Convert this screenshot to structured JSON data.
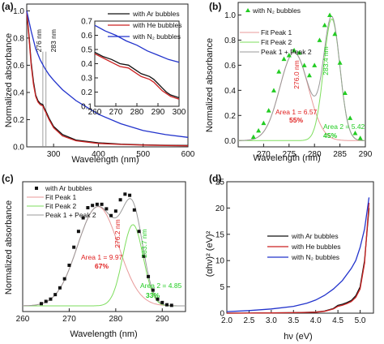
{
  "panels": [
    {
      "id": "a",
      "label": "(a)"
    },
    {
      "id": "b",
      "label": "(b)"
    },
    {
      "id": "c",
      "label": "(c)"
    },
    {
      "id": "d",
      "label": "(d)"
    }
  ],
  "colors": {
    "ar": "#111111",
    "he": "#cc2222",
    "n2": "#2233cc",
    "fit1": "#e89a9a",
    "fit2": "#7ede5e",
    "sum": "#999999",
    "marker_green": "#22cc22",
    "ann_red": "#e02020",
    "ann_green": "#22cc22"
  },
  "chart_data": [
    {
      "id": "a",
      "type": "line",
      "xlabel": "Wavelength (nm)",
      "ylabel": "Normalized absorbance",
      "xlim": [
        240,
        600
      ],
      "ylim": [
        0,
        1.05
      ],
      "xticks": [
        300,
        400,
        500,
        600
      ],
      "yticks": [
        0.0,
        0.2,
        0.4,
        0.6,
        0.8,
        1.0
      ],
      "xtick_labels": [
        "300",
        "400",
        "500",
        "600"
      ],
      "ytick_labels": [
        "0.0",
        "0.2",
        "0.4",
        "0.6",
        "0.8",
        "1.0"
      ],
      "annotations": [
        {
          "text": "276 nm",
          "x": 276
        },
        {
          "text": "283 nm",
          "x": 283
        }
      ],
      "legend": [
        "with Ar bubbles",
        "with He bubbles",
        "with N₂ bubbles"
      ],
      "series": [
        {
          "name": "with Ar bubbles",
          "color_key": "ar",
          "x": [
            240,
            245,
            250,
            255,
            260,
            265,
            270,
            276,
            280,
            283,
            290,
            300,
            320,
            350,
            400,
            450,
            500,
            550,
            600
          ],
          "y": [
            1.0,
            0.82,
            0.62,
            0.48,
            0.38,
            0.34,
            0.32,
            0.31,
            0.28,
            0.26,
            0.21,
            0.15,
            0.09,
            0.05,
            0.03,
            0.02,
            0.015,
            0.012,
            0.01
          ]
        },
        {
          "name": "with He bubbles",
          "color_key": "he",
          "x": [
            240,
            245,
            250,
            255,
            260,
            265,
            270,
            276,
            280,
            283,
            290,
            300,
            320,
            350,
            400,
            450,
            500,
            550,
            600
          ],
          "y": [
            1.0,
            0.8,
            0.6,
            0.46,
            0.37,
            0.33,
            0.31,
            0.3,
            0.27,
            0.25,
            0.2,
            0.14,
            0.08,
            0.045,
            0.025,
            0.018,
            0.013,
            0.01,
            0.008
          ]
        },
        {
          "name": "with N₂ bubbles",
          "color_key": "n2",
          "x": [
            240,
            250,
            260,
            270,
            280,
            290,
            300,
            320,
            350,
            400,
            450,
            500,
            550,
            600
          ],
          "y": [
            1.0,
            0.85,
            0.72,
            0.64,
            0.58,
            0.53,
            0.49,
            0.42,
            0.34,
            0.24,
            0.17,
            0.12,
            0.09,
            0.07
          ]
        }
      ],
      "inset": {
        "xlim": [
          260,
          300
        ],
        "ylim": [
          0.1,
          0.7
        ],
        "xticks": [
          260,
          270,
          280,
          290,
          300
        ],
        "yticks": [
          0.1,
          0.2,
          0.3,
          0.4,
          0.5,
          0.6,
          0.7
        ],
        "xtick_labels": [
          "260",
          "270",
          "280",
          "290",
          "300"
        ],
        "ytick_labels": [
          "0.1",
          "0.2",
          "0.3",
          "0.4",
          "0.5",
          "0.6",
          "0.7"
        ],
        "series": [
          {
            "name": "with Ar bubbles",
            "color_key": "ar",
            "x": [
              260,
              264,
              268,
              272,
              276,
              278,
              280,
              282,
              284,
              286,
              288,
              290,
              292,
              294,
              296,
              300
            ],
            "y": [
              0.48,
              0.45,
              0.43,
              0.4,
              0.39,
              0.37,
              0.35,
              0.33,
              0.32,
              0.31,
              0.29,
              0.26,
              0.23,
              0.2,
              0.18,
              0.16
            ]
          },
          {
            "name": "with He bubbles",
            "color_key": "he",
            "x": [
              260,
              264,
              268,
              272,
              276,
              278,
              280,
              282,
              284,
              286,
              288,
              290,
              292,
              294,
              296,
              300
            ],
            "y": [
              0.47,
              0.44,
              0.41,
              0.38,
              0.37,
              0.35,
              0.33,
              0.31,
              0.3,
              0.29,
              0.27,
              0.24,
              0.21,
              0.19,
              0.17,
              0.15
            ]
          },
          {
            "name": "with N₂ bubbles",
            "color_key": "n2",
            "x": [
              260,
              265,
              270,
              275,
              280,
              285,
              290,
              295,
              300
            ],
            "y": [
              0.67,
              0.63,
              0.6,
              0.56,
              0.53,
              0.49,
              0.46,
              0.43,
              0.41
            ]
          }
        ]
      }
    },
    {
      "id": "b",
      "type": "scatter",
      "xlabel": "Wavelength (nm)",
      "ylabel": "Normalized absorbance",
      "xlim": [
        265,
        290
      ],
      "ylim": [
        -0.05,
        1.1
      ],
      "xticks": [
        270,
        275,
        280,
        285,
        290
      ],
      "yticks": [
        0.0,
        0.2,
        0.4,
        0.6,
        0.8,
        1.0
      ],
      "xtick_labels": [
        "270",
        "275",
        "280",
        "285",
        "290"
      ],
      "ytick_labels": [
        "0.0",
        "0.2",
        "0.4",
        "0.6",
        "0.8",
        "1.0"
      ],
      "legend": [
        "with N₂ bubbles",
        "Fit Peak 1",
        "Fit Peak 2",
        "Peak 1 + Peak 2"
      ],
      "markers": {
        "x": [
          268,
          269,
          270,
          271,
          272,
          273,
          274,
          275,
          276,
          277,
          278,
          279,
          280,
          281,
          282,
          283,
          284,
          285,
          286,
          287,
          288,
          289
        ],
        "y": [
          0.03,
          0.08,
          0.14,
          0.24,
          0.4,
          0.55,
          0.65,
          0.68,
          0.72,
          0.7,
          0.6,
          0.52,
          0.6,
          0.8,
          0.92,
          1.0,
          0.85,
          0.62,
          0.38,
          0.18,
          0.06,
          0.02
        ]
      },
      "peak1": {
        "center": 276.0,
        "height": 0.7,
        "sigma": 2.8
      },
      "peak2": {
        "center": 283.4,
        "height": 0.97,
        "sigma": 1.6
      },
      "annotations": [
        {
          "text": "276.0 nm",
          "x": 276
        },
        {
          "text": "283.4 nm",
          "x": 283.4
        },
        {
          "text": "Area 1 = 6.57",
          "color_key": "ann_red"
        },
        {
          "text": "55%",
          "color_key": "ann_red"
        },
        {
          "text": "Area 2 = 5.42",
          "color_key": "ann_green"
        },
        {
          "text": "45%",
          "color_key": "ann_green"
        }
      ]
    },
    {
      "id": "c",
      "type": "scatter",
      "xlabel": "Wavelength (nm)",
      "ylabel": "Normalized absorbance",
      "xlim": [
        260,
        295
      ],
      "ylim": [
        -0.05,
        1.1
      ],
      "xticks": [
        260,
        270,
        280,
        290
      ],
      "yticks": [],
      "xtick_labels": [
        "260",
        "270",
        "280",
        "290"
      ],
      "ytick_labels": [],
      "legend": [
        "with Ar bubbles",
        "Fit Peak 1",
        "Fit Peak 2",
        "Peak 1 + Peak 2"
      ],
      "markers": {
        "x": [
          264,
          265,
          266,
          267,
          268,
          269,
          270,
          271,
          272,
          273,
          274,
          275,
          276,
          277,
          278,
          279,
          280,
          281,
          282,
          283,
          284,
          285,
          286,
          287,
          288,
          289,
          290,
          291,
          292
        ],
        "y": [
          0.02,
          0.04,
          0.06,
          0.1,
          0.16,
          0.24,
          0.36,
          0.52,
          0.66,
          0.78,
          0.87,
          0.89,
          0.9,
          0.9,
          0.86,
          0.8,
          0.84,
          0.94,
          0.99,
          0.98,
          0.85,
          0.66,
          0.44,
          0.26,
          0.14,
          0.06,
          0.03,
          0.01,
          0.005
        ]
      },
      "peak1": {
        "center": 276.2,
        "height": 0.88,
        "sigma": 4.4
      },
      "peak2": {
        "center": 283.7,
        "height": 0.72,
        "sigma": 2.2
      },
      "annotations": [
        {
          "text": "276.2 nm",
          "x": 276.2
        },
        {
          "text": "283.7 nm",
          "x": 283.7
        },
        {
          "text": "Area 1 = 9.97",
          "color_key": "ann_red"
        },
        {
          "text": "67%",
          "color_key": "ann_red"
        },
        {
          "text": "Area 2 = 4.85",
          "color_key": "ann_green"
        },
        {
          "text": "33%",
          "color_key": "ann_green"
        }
      ]
    },
    {
      "id": "d",
      "type": "line",
      "xlabel": "hν (eV)",
      "ylabel": "(αhν)² (eV)²",
      "xlim": [
        2.0,
        5.3
      ],
      "ylim": [
        0,
        25
      ],
      "xticks": [
        2.0,
        2.5,
        3.0,
        3.5,
        4.0,
        4.5,
        5.0
      ],
      "yticks": [
        0,
        5,
        10,
        15,
        20,
        25
      ],
      "xtick_labels": [
        "2.0",
        "2.5",
        "3.0",
        "3.5",
        "4.0",
        "4.5",
        "5.0"
      ],
      "ytick_labels": [
        "0",
        "5",
        "10",
        "15",
        "20",
        "25"
      ],
      "legend": [
        "with Ar bubbles",
        "with He bubbles",
        "with N₂ bubbles"
      ],
      "series": [
        {
          "name": "with Ar bubbles",
          "color_key": "ar",
          "x": [
            2.0,
            2.5,
            3.0,
            3.5,
            4.0,
            4.2,
            4.4,
            4.5,
            4.6,
            4.7,
            4.8,
            4.9,
            5.0,
            5.1,
            5.2
          ],
          "y": [
            0,
            0.02,
            0.05,
            0.1,
            0.2,
            0.4,
            0.9,
            1.5,
            1.7,
            2.0,
            2.4,
            3.3,
            5.0,
            10.0,
            20.0
          ]
        },
        {
          "name": "with He bubbles",
          "color_key": "he",
          "x": [
            2.0,
            2.5,
            3.0,
            3.5,
            4.0,
            4.2,
            4.4,
            4.5,
            4.6,
            4.7,
            4.8,
            4.9,
            5.0,
            5.1,
            5.2
          ],
          "y": [
            0,
            0.02,
            0.04,
            0.09,
            0.18,
            0.35,
            0.8,
            1.3,
            1.5,
            1.8,
            2.2,
            3.0,
            4.6,
            9.5,
            21.0
          ]
        },
        {
          "name": "with N₂ bubbles",
          "color_key": "n2",
          "x": [
            2.0,
            2.5,
            3.0,
            3.5,
            3.8,
            4.0,
            4.2,
            4.4,
            4.6,
            4.8,
            4.9,
            5.0,
            5.1,
            5.2
          ],
          "y": [
            0.3,
            0.5,
            0.8,
            1.3,
            1.9,
            2.5,
            3.4,
            4.6,
            6.2,
            8.5,
            10.0,
            12.5,
            16.0,
            22.0
          ]
        }
      ]
    }
  ]
}
